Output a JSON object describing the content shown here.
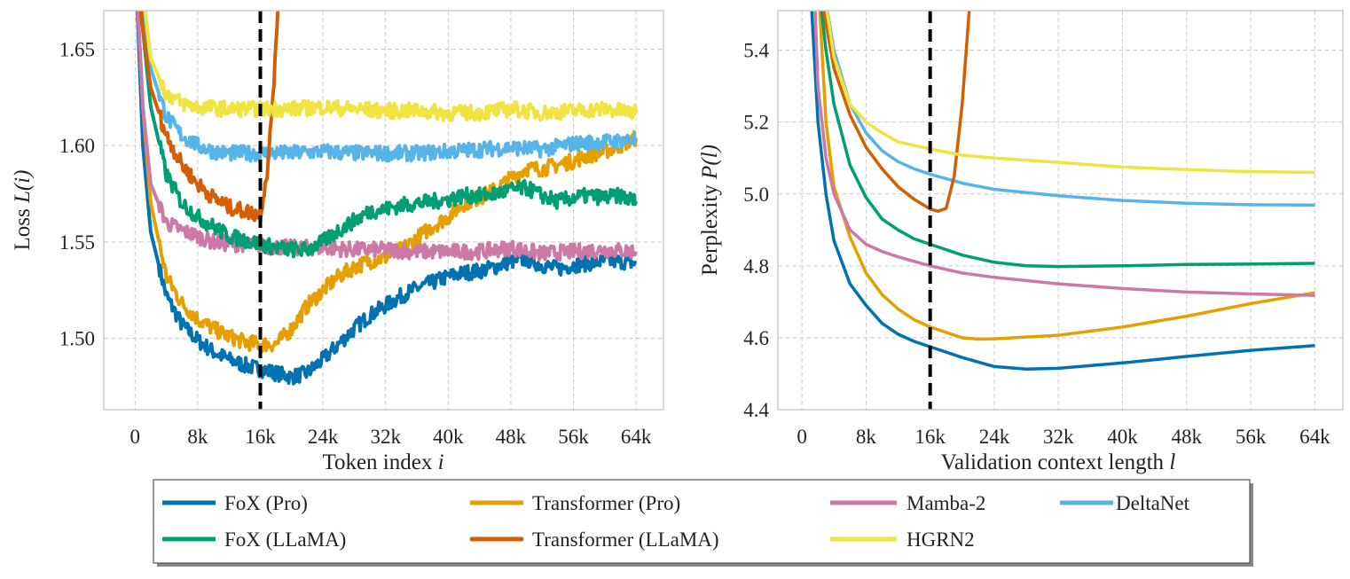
{
  "chart_data": [
    {
      "type": "line",
      "xlabel": "Token index",
      "xlabel_var": "i",
      "ylabel": "Loss",
      "ylabel_var": "L(i)",
      "xlim": [
        -4,
        67.5
      ],
      "ylim": [
        1.463,
        1.67
      ],
      "xticks": [
        0,
        8,
        16,
        24,
        32,
        40,
        48,
        56,
        64
      ],
      "xtick_labels": [
        "0",
        "8k",
        "16k",
        "24k",
        "32k",
        "40k",
        "48k",
        "56k",
        "64k"
      ],
      "yticks": [
        1.5,
        1.55,
        1.6,
        1.65
      ],
      "ytick_labels": [
        "1.50",
        "1.55",
        "1.60",
        "1.65"
      ],
      "grid": true,
      "vline_x": 16,
      "series": [
        {
          "name": "FoX (Pro)",
          "color": "#0072B2",
          "x": [
            0,
            1,
            2,
            4,
            6,
            8,
            10,
            12,
            14,
            16,
            18,
            20,
            22,
            24,
            26,
            28,
            30,
            32,
            34,
            36,
            38,
            40,
            42,
            44,
            46,
            48,
            50,
            52,
            54,
            56,
            58,
            60,
            62,
            64
          ],
          "y": [
            1.7,
            1.6,
            1.555,
            1.522,
            1.507,
            1.499,
            1.493,
            1.489,
            1.486,
            1.484,
            1.482,
            1.48,
            1.482,
            1.489,
            1.497,
            1.505,
            1.512,
            1.517,
            1.522,
            1.526,
            1.529,
            1.532,
            1.534,
            1.535,
            1.537,
            1.54,
            1.541,
            1.538,
            1.536,
            1.538,
            1.539,
            1.54,
            1.54,
            1.539
          ]
        },
        {
          "name": "Transformer (Pro)",
          "color": "#E69F00",
          "x": [
            0,
            1,
            2,
            4,
            6,
            8,
            10,
            12,
            14,
            16,
            18,
            20,
            22,
            24,
            26,
            28,
            30,
            32,
            34,
            36,
            38,
            40,
            42,
            44,
            46,
            48,
            50,
            52,
            54,
            56,
            58,
            60,
            62,
            64
          ],
          "y": [
            1.7,
            1.62,
            1.57,
            1.532,
            1.518,
            1.51,
            1.505,
            1.501,
            1.498,
            1.497,
            1.497,
            1.505,
            1.517,
            1.525,
            1.532,
            1.537,
            1.54,
            1.542,
            1.546,
            1.552,
            1.558,
            1.563,
            1.57,
            1.573,
            1.577,
            1.583,
            1.588,
            1.588,
            1.59,
            1.592,
            1.595,
            1.597,
            1.6,
            1.604
          ]
        },
        {
          "name": "Mamba-2",
          "color": "#CC79A7",
          "x": [
            0,
            1,
            2,
            4,
            6,
            8,
            10,
            12,
            14,
            16,
            20,
            24,
            28,
            32,
            36,
            40,
            44,
            48,
            52,
            56,
            60,
            64
          ],
          "y": [
            1.7,
            1.62,
            1.58,
            1.56,
            1.556,
            1.553,
            1.55,
            1.549,
            1.549,
            1.548,
            1.547,
            1.547,
            1.546,
            1.546,
            1.545,
            1.545,
            1.545,
            1.547,
            1.544,
            1.545,
            1.546,
            1.545
          ]
        },
        {
          "name": "DeltaNet",
          "color": "#56B4E9",
          "x": [
            0,
            1,
            2,
            4,
            6,
            8,
            10,
            12,
            16,
            20,
            24,
            28,
            32,
            36,
            40,
            44,
            48,
            52,
            56,
            60,
            64
          ],
          "y": [
            1.7,
            1.67,
            1.64,
            1.615,
            1.605,
            1.6,
            1.597,
            1.596,
            1.596,
            1.596,
            1.597,
            1.596,
            1.596,
            1.596,
            1.597,
            1.598,
            1.599,
            1.598,
            1.601,
            1.602,
            1.603
          ]
        },
        {
          "name": "FoX (LLaMA)",
          "color": "#009E73",
          "x": [
            0,
            1,
            2,
            4,
            6,
            8,
            10,
            12,
            14,
            16,
            18,
            20,
            22,
            24,
            26,
            28,
            30,
            32,
            34,
            36,
            38,
            40,
            42,
            44,
            46,
            48,
            50,
            52,
            54,
            56,
            58,
            60,
            62,
            64
          ],
          "y": [
            1.7,
            1.66,
            1.62,
            1.585,
            1.57,
            1.563,
            1.558,
            1.553,
            1.551,
            1.549,
            1.547,
            1.546,
            1.546,
            1.55,
            1.556,
            1.561,
            1.566,
            1.567,
            1.569,
            1.57,
            1.571,
            1.572,
            1.574,
            1.574,
            1.575,
            1.577,
            1.578,
            1.574,
            1.571,
            1.573,
            1.574,
            1.573,
            1.574,
            1.571
          ]
        },
        {
          "name": "Transformer (LLaMA)",
          "color": "#D55E00",
          "x": [
            0,
            1,
            2,
            4,
            6,
            8,
            10,
            12,
            14,
            16,
            17,
            18,
            18.5
          ],
          "y": [
            1.7,
            1.66,
            1.63,
            1.605,
            1.59,
            1.58,
            1.573,
            1.568,
            1.566,
            1.564,
            1.59,
            1.65,
            1.7
          ]
        },
        {
          "name": "HGRN2",
          "color": "#F0E442",
          "x": [
            0,
            1,
            2,
            4,
            6,
            8,
            12,
            16,
            20,
            24,
            28,
            32,
            36,
            40,
            44,
            48,
            52,
            56,
            60,
            64
          ],
          "y": [
            1.7,
            1.68,
            1.645,
            1.627,
            1.622,
            1.62,
            1.619,
            1.619,
            1.619,
            1.62,
            1.619,
            1.618,
            1.618,
            1.617,
            1.617,
            1.619,
            1.617,
            1.618,
            1.619,
            1.617
          ]
        }
      ]
    },
    {
      "type": "line",
      "xlabel": "Validation context length",
      "xlabel_var": "l",
      "ylabel": "Perplexity",
      "ylabel_var": "P(l)",
      "xlim": [
        -3,
        67.5
      ],
      "ylim": [
        4.4,
        5.51
      ],
      "xticks": [
        0,
        8,
        16,
        24,
        32,
        40,
        48,
        56,
        64
      ],
      "xtick_labels": [
        "0",
        "8k",
        "16k",
        "24k",
        "32k",
        "40k",
        "48k",
        "56k",
        "64k"
      ],
      "yticks": [
        4.4,
        4.6,
        4.8,
        5.0,
        5.2,
        5.4
      ],
      "ytick_labels": [
        "4.4",
        "4.6",
        "4.8",
        "5.0",
        "5.2",
        "5.4"
      ],
      "grid": true,
      "vline_x": 16,
      "series": [
        {
          "name": "FoX (Pro)",
          "color": "#0072B2",
          "x": [
            1,
            2,
            3,
            4,
            6,
            8,
            10,
            12,
            14,
            16,
            20,
            24,
            28,
            32,
            40,
            48,
            56,
            64
          ],
          "y": [
            5.6,
            5.2,
            5.0,
            4.87,
            4.75,
            4.69,
            4.64,
            4.61,
            4.59,
            4.575,
            4.545,
            4.52,
            4.513,
            4.515,
            4.53,
            4.548,
            4.565,
            4.578
          ]
        },
        {
          "name": "Transformer (Pro)",
          "color": "#E69F00",
          "x": [
            2,
            3,
            4,
            6,
            8,
            10,
            12,
            14,
            16,
            20,
            22,
            24,
            32,
            40,
            48,
            56,
            64
          ],
          "y": [
            5.6,
            5.2,
            5.02,
            4.88,
            4.78,
            4.72,
            4.68,
            4.65,
            4.63,
            4.6,
            4.596,
            4.597,
            4.607,
            4.63,
            4.66,
            4.695,
            4.725
          ]
        },
        {
          "name": "Mamba-2",
          "color": "#CC79A7",
          "x": [
            1.5,
            2,
            3,
            4,
            6,
            8,
            10,
            12,
            16,
            20,
            24,
            32,
            40,
            48,
            56,
            64
          ],
          "y": [
            5.6,
            5.3,
            5.1,
            5.0,
            4.9,
            4.86,
            4.84,
            4.825,
            4.8,
            4.78,
            4.768,
            4.75,
            4.737,
            4.727,
            4.722,
            4.718
          ]
        },
        {
          "name": "DeltaNet",
          "color": "#56B4E9",
          "x": [
            2.5,
            4,
            6,
            8,
            10,
            12,
            14,
            16,
            20,
            24,
            32,
            40,
            48,
            56,
            64
          ],
          "y": [
            5.6,
            5.4,
            5.25,
            5.17,
            5.12,
            5.09,
            5.07,
            5.055,
            5.03,
            5.013,
            4.995,
            4.982,
            4.974,
            4.97,
            4.969
          ]
        },
        {
          "name": "FoX (LLaMA)",
          "color": "#009E73",
          "x": [
            2,
            3,
            4,
            6,
            8,
            10,
            12,
            14,
            16,
            20,
            24,
            28,
            32,
            40,
            48,
            56,
            64
          ],
          "y": [
            5.6,
            5.4,
            5.25,
            5.08,
            4.99,
            4.93,
            4.9,
            4.875,
            4.86,
            4.83,
            4.81,
            4.8,
            4.798,
            4.8,
            4.804,
            4.805,
            4.807
          ]
        },
        {
          "name": "Transformer (LLaMA)",
          "color": "#D55E00",
          "x": [
            2,
            4,
            6,
            8,
            10,
            12,
            14,
            16,
            17,
            18,
            19,
            20,
            21
          ],
          "y": [
            5.6,
            5.35,
            5.22,
            5.13,
            5.07,
            5.02,
            4.985,
            4.958,
            4.952,
            4.96,
            5.05,
            5.25,
            5.55
          ]
        },
        {
          "name": "HGRN2",
          "color": "#F0E442",
          "x": [
            2.5,
            4,
            6,
            8,
            10,
            12,
            16,
            20,
            24,
            32,
            40,
            48,
            56,
            64
          ],
          "y": [
            5.6,
            5.38,
            5.25,
            5.2,
            5.17,
            5.145,
            5.125,
            5.108,
            5.1,
            5.088,
            5.075,
            5.068,
            5.062,
            5.06
          ]
        }
      ]
    }
  ],
  "legend": {
    "placement": "bottom",
    "items": [
      {
        "label": "FoX (Pro)",
        "color": "#0072B2"
      },
      {
        "label": "Transformer (Pro)",
        "color": "#E69F00"
      },
      {
        "label": "Mamba-2",
        "color": "#CC79A7"
      },
      {
        "label": "DeltaNet",
        "color": "#56B4E9"
      },
      {
        "label": "FoX (LLaMA)",
        "color": "#009E73"
      },
      {
        "label": "Transformer (LLaMA)",
        "color": "#D55E00"
      },
      {
        "label": "HGRN2",
        "color": "#F0E442"
      }
    ]
  }
}
